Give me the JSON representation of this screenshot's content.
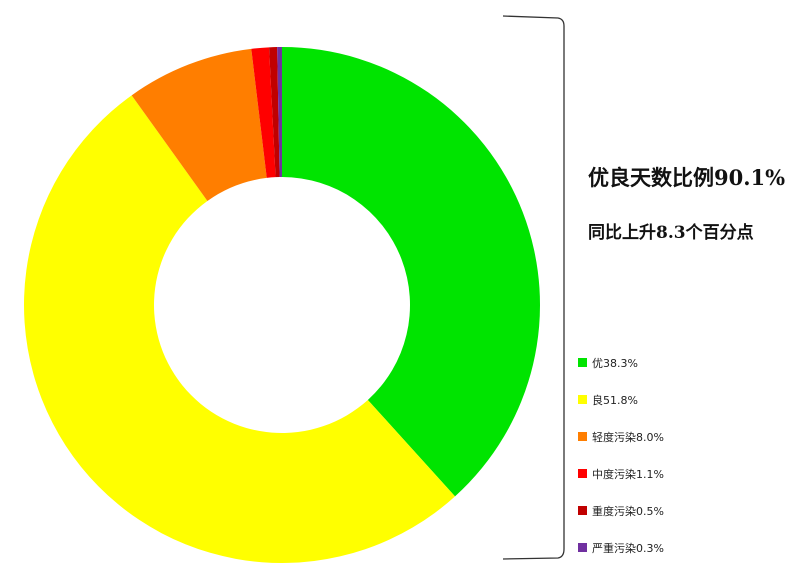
{
  "chart_data": {
    "type": "pie",
    "donut": true,
    "headline": "优良天数比例90.1%",
    "subline": "同比上升8.3个百分点",
    "legend_position": "right",
    "slices": [
      {
        "label": "优",
        "legend": "优38.3%",
        "value": 38.3,
        "color": "#00e400"
      },
      {
        "label": "良",
        "legend": "良51.8%",
        "value": 51.8,
        "color": "#ffff00"
      },
      {
        "label": "轻度污染",
        "legend": "轻度污染8.0%",
        "value": 8.0,
        "color": "#ff7e00"
      },
      {
        "label": "中度污染",
        "legend": "中度污染1.1%",
        "value": 1.1,
        "color": "#ff0000"
      },
      {
        "label": "重度污染",
        "legend": "重度污染0.5%",
        "value": 0.5,
        "color": "#c00000"
      },
      {
        "label": "严重污染",
        "legend": "严重污染0.3%",
        "value": 0.3,
        "color": "#7030a0"
      }
    ]
  }
}
